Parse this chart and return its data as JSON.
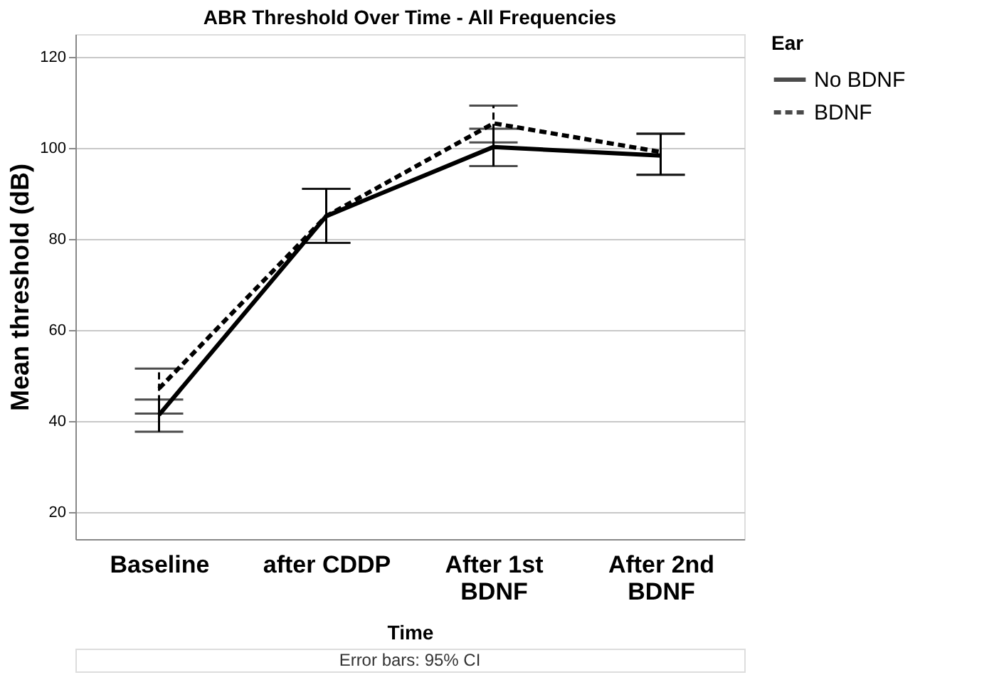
{
  "chart_data": {
    "type": "line",
    "title": "ABR Threshold Over Time - All Frequencies",
    "xlabel": "Time",
    "ylabel": "Mean threshold (dB)",
    "legend_title": "Ear",
    "categories": [
      "Baseline",
      "after CDDP",
      "After 1st\nBDNF",
      "After 2nd\nBDNF"
    ],
    "series": [
      {
        "name": "No BDNF",
        "color": "#000000",
        "line_style": "solid",
        "values": [
          41.3,
          85.0,
          100.2,
          98.3
        ],
        "errors": [
          [
            37.6,
            44.7
          ],
          [
            79.1,
            91.0
          ],
          [
            96.0,
            104.2
          ],
          [
            94.1,
            103.1
          ]
        ]
      },
      {
        "name": "BDNF",
        "color": "#000000",
        "line_style": "dashed",
        "values": [
          47.1,
          85.0,
          105.4,
          99.1
        ],
        "errors": [
          [
            41.6,
            51.5
          ],
          [
            79.1,
            91.0
          ],
          [
            101.2,
            109.3
          ],
          [
            94.1,
            103.1
          ]
        ]
      }
    ],
    "ylim": [
      14,
      125
    ],
    "yticks": [
      20,
      40,
      60,
      80,
      100,
      120
    ],
    "grid": "y",
    "legend": "top right",
    "marker": "none",
    "annotations": [
      "Error bars: 95% CI"
    ]
  }
}
